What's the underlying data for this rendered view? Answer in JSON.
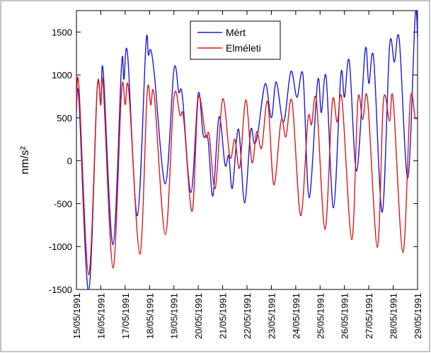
{
  "chart_data": {
    "type": "line",
    "y_label": "nm/s²",
    "xlim": [
      15,
      29
    ],
    "xticks": [
      {
        "value": 15,
        "label": "15/05/1991"
      },
      {
        "value": 16,
        "label": "16/05/1991"
      },
      {
        "value": 17,
        "label": "17/05/1991"
      },
      {
        "value": 18,
        "label": "18/05/1991"
      },
      {
        "value": 19,
        "label": "19/05/1991"
      },
      {
        "value": 20,
        "label": "20/05/1991"
      },
      {
        "value": 21,
        "label": "21/05/1991"
      },
      {
        "value": 22,
        "label": "22/05/1991"
      },
      {
        "value": 23,
        "label": "23/05/1991"
      },
      {
        "value": 24,
        "label": "24/05/1991"
      },
      {
        "value": 25,
        "label": "25/05/1991"
      },
      {
        "value": 26,
        "label": "26/05/1991"
      },
      {
        "value": 27,
        "label": "27/05/1991"
      },
      {
        "value": 28,
        "label": "28/05/1991"
      },
      {
        "value": 29,
        "label": "29/05/1991"
      }
    ],
    "ylim": [
      -1500,
      1750
    ],
    "yticks": [
      -1500,
      -1000,
      -500,
      0,
      500,
      1000,
      1500
    ],
    "legend": "top-center",
    "series": [
      {
        "name": "Mért",
        "color": "#1a1adc",
        "x": [
          15.0,
          15.1,
          15.5,
          15.85,
          16.0,
          16.1,
          16.5,
          16.85,
          16.95,
          17.1,
          17.5,
          17.85,
          17.95,
          18.05,
          18.2,
          18.65,
          19.0,
          19.2,
          19.35,
          19.7,
          20.0,
          20.2,
          20.4,
          20.6,
          20.85,
          21.1,
          21.25,
          21.4,
          21.65,
          21.9,
          22.15,
          22.3,
          22.45,
          22.75,
          23.0,
          23.2,
          23.5,
          23.8,
          24.05,
          24.3,
          24.55,
          24.9,
          25.05,
          25.25,
          25.55,
          25.85,
          26.0,
          26.2,
          26.5,
          26.85,
          27.0,
          27.2,
          27.55,
          27.85,
          28.05,
          28.25,
          28.6,
          28.9,
          29.0
        ],
        "values": [
          560,
          720,
          -1520,
          830,
          650,
          1040,
          -980,
          1110,
          950,
          1240,
          -640,
          1350,
          1230,
          1290,
          1000,
          -270,
          1060,
          800,
          750,
          -370,
          780,
          300,
          250,
          -410,
          510,
          -50,
          60,
          -320,
          370,
          -490,
          350,
          200,
          330,
          900,
          500,
          920,
          450,
          1040,
          740,
          990,
          -430,
          930,
          560,
          970,
          -550,
          1000,
          740,
          1160,
          -120,
          1290,
          900,
          1190,
          -600,
          1330,
          1150,
          1410,
          -200,
          1680,
          1440
        ]
      },
      {
        "name": "Elméleti",
        "color": "#dc1a1a",
        "x": [
          15.0,
          15.1,
          15.5,
          15.85,
          16.0,
          16.1,
          16.5,
          16.85,
          17.0,
          17.15,
          17.6,
          17.9,
          18.05,
          18.2,
          18.65,
          19.0,
          19.25,
          19.4,
          19.75,
          20.0,
          20.3,
          20.45,
          20.7,
          21.0,
          21.3,
          21.5,
          21.7,
          21.95,
          22.2,
          22.4,
          22.6,
          22.85,
          23.1,
          23.4,
          23.6,
          23.85,
          24.2,
          24.5,
          24.65,
          24.85,
          25.2,
          25.5,
          25.7,
          25.9,
          26.3,
          26.55,
          26.75,
          26.95,
          27.35,
          27.6,
          27.85,
          28.0,
          28.4,
          28.7,
          28.9,
          29.0
        ],
        "values": [
          580,
          880,
          -1330,
          830,
          650,
          870,
          -1250,
          810,
          650,
          810,
          -1090,
          780,
          650,
          740,
          -860,
          740,
          530,
          490,
          -590,
          730,
          290,
          300,
          -320,
          720,
          40,
          250,
          -80,
          710,
          -20,
          340,
          150,
          690,
          -280,
          470,
          280,
          690,
          -640,
          480,
          420,
          700,
          -800,
          680,
          450,
          710,
          -920,
          700,
          480,
          710,
          -1010,
          700,
          460,
          710,
          -1070,
          700,
          500,
          510
        ]
      }
    ]
  }
}
